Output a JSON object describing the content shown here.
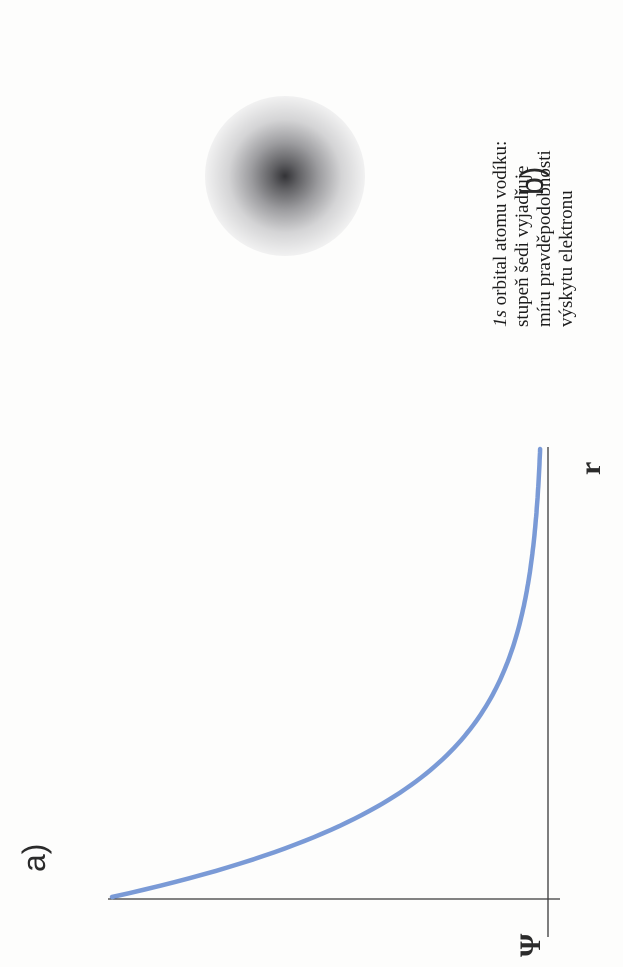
{
  "panel_a": {
    "label": "a)",
    "y_axis_label": "Ψ",
    "x_axis_label": "r",
    "curve_color": "#7a9ad6",
    "curve": "exponential decay"
  },
  "panel_b": {
    "label": "b)",
    "caption": {
      "prefix": "1s",
      "line1_rest": " orbital atomu vodíku:",
      "line2": "stupeň šedi vyjadřuje",
      "line3": "míru pravděpodobnosti",
      "line4": "výskytu elektronu"
    }
  }
}
